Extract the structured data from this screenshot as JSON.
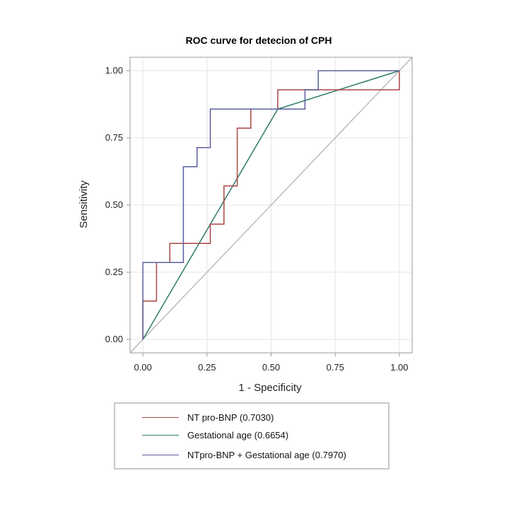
{
  "chart_data": {
    "type": "line",
    "title": "ROC curve for detecion of CPH",
    "xlabel": "1 - Specificity",
    "ylabel": "Sensitivity",
    "xlim": [
      -0.05,
      1.05
    ],
    "ylim": [
      -0.05,
      1.05
    ],
    "xticks": [
      "0.00",
      "0.25",
      "0.50",
      "0.75",
      "1.00"
    ],
    "yticks": [
      "0.00",
      "0.25",
      "0.50",
      "0.75",
      "1.00"
    ],
    "grid": true,
    "legend_position": "bottom",
    "series": [
      {
        "name": "NT pro-BNP (0.7030)",
        "color": "#a94643",
        "x": [
          0,
          0,
          0.053,
          0.053,
          0.105,
          0.105,
          0.263,
          0.263,
          0.316,
          0.316,
          0.368,
          0.368,
          0.421,
          0.421,
          0.526,
          0.526,
          1.0,
          1.0
        ],
        "y": [
          0,
          0.143,
          0.143,
          0.286,
          0.286,
          0.357,
          0.357,
          0.429,
          0.429,
          0.571,
          0.571,
          0.786,
          0.786,
          0.857,
          0.857,
          0.929,
          0.929,
          1.0
        ]
      },
      {
        "name": "Gestational age (0.6654)",
        "color": "#2e7a6a",
        "x": [
          0,
          0.526,
          1.0
        ],
        "y": [
          0,
          0.857,
          1.0
        ]
      },
      {
        "name": "NTpro-BNP + Gestational age (0.7970)",
        "color": "#5a5f9e",
        "x": [
          0,
          0,
          0.158,
          0.158,
          0.211,
          0.211,
          0.263,
          0.263,
          0.632,
          0.632,
          0.684,
          0.684,
          1.0
        ],
        "y": [
          0,
          0.286,
          0.286,
          0.643,
          0.643,
          0.714,
          0.714,
          0.857,
          0.857,
          0.929,
          0.929,
          1.0,
          1.0
        ]
      },
      {
        "name": "",
        "color": "#a0a0a0",
        "x": [
          -0.05,
          1.05
        ],
        "y": [
          -0.05,
          1.05
        ]
      }
    ]
  }
}
